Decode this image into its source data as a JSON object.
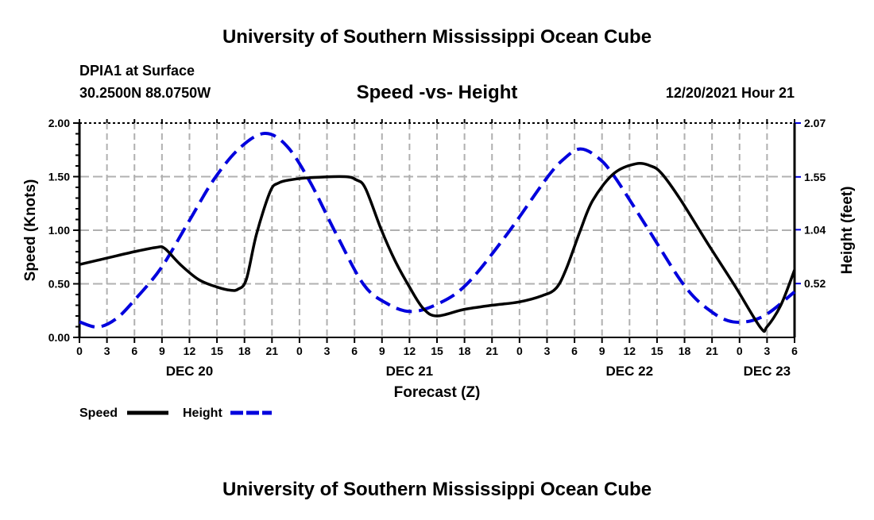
{
  "header": {
    "title": "University of Southern Mississippi Ocean Cube",
    "station": "DPIA1 at Surface",
    "location": "30.2500N  88.0750W",
    "datetime": "12/20/2021 Hour 21",
    "footer_title": "University of Southern Mississippi Ocean Cube"
  },
  "chart_data": {
    "type": "line",
    "title": "Speed -vs- Height",
    "xlabel": "Forecast (Z)",
    "ylabel": "Speed (Knots)",
    "y2label": "Height (feet)",
    "xlim_hours": [
      0,
      78
    ],
    "ylim": [
      0,
      2.0
    ],
    "y2lim": [
      0,
      2.07
    ],
    "grid": true,
    "x_tick_labels": [
      "0",
      "3",
      "6",
      "9",
      "12",
      "15",
      "18",
      "21",
      "0",
      "3",
      "6",
      "9",
      "12",
      "15",
      "18",
      "21",
      "0",
      "3",
      "6",
      "9",
      "12",
      "15",
      "18",
      "21",
      "0",
      "3",
      "6"
    ],
    "y_tick_labels": [
      "0.00",
      "0.50",
      "1.00",
      "1.50",
      "2.00"
    ],
    "y2_tick_labels": [
      "0.52",
      "1.04",
      "1.55",
      "2.07"
    ],
    "day_labels": [
      {
        "label": "DEC 20",
        "hour": 12
      },
      {
        "label": "DEC 21",
        "hour": 36
      },
      {
        "label": "DEC 22",
        "hour": 60
      },
      {
        "label": "DEC 23",
        "hour": 75
      }
    ],
    "legend": [
      {
        "name": "Speed",
        "color": "#000000",
        "style": "solid"
      },
      {
        "name": "Height",
        "color": "#0000dd",
        "style": "dashed"
      }
    ],
    "series": [
      {
        "name": "Speed",
        "axis": "left",
        "color": "#000000",
        "x": [
          0,
          3,
          6,
          8.4,
          9.3,
          11,
          13,
          15,
          16.5,
          17.3,
          18.2,
          19.3,
          20.8,
          21.7,
          23,
          25.1,
          28.9,
          30.2,
          31.2,
          32.9,
          34.4,
          36,
          37.5,
          39,
          41.9,
          45,
          47.9,
          50.5,
          52,
          53.1,
          54.6,
          56,
          58.3,
          60.7,
          62.3,
          63.5,
          65.6,
          68.5,
          71.5,
          74.3,
          75,
          76.5,
          78
        ],
        "y": [
          0.68,
          0.74,
          0.8,
          0.84,
          0.83,
          0.68,
          0.54,
          0.47,
          0.44,
          0.45,
          0.54,
          0.96,
          1.36,
          1.44,
          1.47,
          1.49,
          1.5,
          1.47,
          1.39,
          1.01,
          0.72,
          0.47,
          0.27,
          0.2,
          0.26,
          0.3,
          0.33,
          0.39,
          0.46,
          0.64,
          0.99,
          1.28,
          1.53,
          1.62,
          1.6,
          1.53,
          1.28,
          0.88,
          0.48,
          0.09,
          0.1,
          0.3,
          0.63
        ]
      },
      {
        "name": "Height",
        "axis": "right",
        "color": "#0000dd",
        "x": [
          0,
          2,
          4,
          6,
          8.9,
          11.8,
          14.7,
          17.5,
          20.2,
          22.6,
          25.1,
          28,
          31,
          33.5,
          36.1,
          39,
          42.2,
          46.5,
          50.9,
          52.8,
          54.6,
          56.5,
          58.3,
          62,
          65.9,
          68.6,
          71.3,
          74.5,
          78
        ],
        "y": [
          0.15,
          0.1,
          0.18,
          0.36,
          0.67,
          1.1,
          1.53,
          1.83,
          1.97,
          1.85,
          1.51,
          1.0,
          0.51,
          0.33,
          0.25,
          0.32,
          0.51,
          0.98,
          1.53,
          1.72,
          1.82,
          1.74,
          1.56,
          1.05,
          0.51,
          0.27,
          0.15,
          0.2,
          0.44
        ]
      }
    ]
  }
}
